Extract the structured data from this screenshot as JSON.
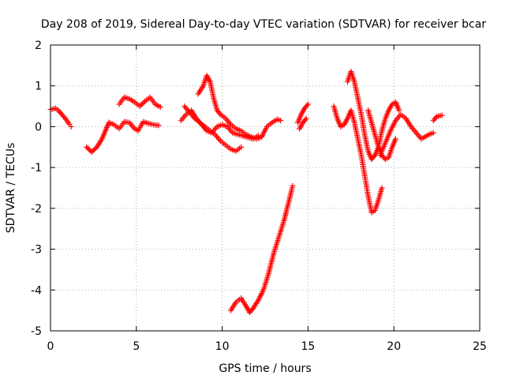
{
  "chart_data": {
    "type": "scatter",
    "title": "Day 208 of 2019, Sidereal Day-to-day VTEC variation (SDTVAR) for receiver bcar",
    "xlabel": "GPS time / hours",
    "ylabel": "SDTVAR / TECUs",
    "xlim": [
      0,
      25
    ],
    "ylim": [
      -5,
      2
    ],
    "xticks": [
      "0",
      "5",
      "10",
      "15",
      "20",
      "25"
    ],
    "yticks": [
      "-5",
      "-4",
      "-3",
      "-2",
      "-1",
      "0",
      "1",
      "2"
    ],
    "grid": true,
    "marker": "+",
    "color": "#ff0000",
    "series": [
      {
        "name": "seg01",
        "x": [
          0.0,
          0.3,
          0.5,
          0.7,
          0.9,
          1.1,
          1.2
        ],
        "y": [
          0.42,
          0.45,
          0.38,
          0.28,
          0.18,
          0.06,
          0.0
        ]
      },
      {
        "name": "seg02",
        "x": [
          2.1,
          2.4,
          2.7,
          3.0,
          3.2,
          3.4
        ],
        "y": [
          -0.5,
          -0.62,
          -0.5,
          -0.3,
          -0.1,
          0.1
        ]
      },
      {
        "name": "seg03",
        "x": [
          3.4,
          3.7,
          4.0,
          4.3,
          4.6,
          4.9,
          5.1,
          5.4,
          5.7,
          6.0,
          6.3
        ],
        "y": [
          0.1,
          0.05,
          -0.05,
          0.12,
          0.1,
          -0.05,
          -0.1,
          0.12,
          0.08,
          0.05,
          0.03
        ]
      },
      {
        "name": "seg04",
        "x": [
          4.0,
          4.3,
          4.6,
          4.9,
          5.2,
          5.5,
          5.8,
          6.1,
          6.4
        ],
        "y": [
          0.55,
          0.72,
          0.68,
          0.6,
          0.5,
          0.62,
          0.72,
          0.55,
          0.48
        ]
      },
      {
        "name": "seg05",
        "x": [
          7.6,
          7.9,
          8.2,
          8.5,
          8.8,
          9.1,
          9.4,
          9.7,
          10.0,
          10.3,
          10.6,
          11.0,
          11.4,
          11.8,
          12.1
        ],
        "y": [
          0.15,
          0.3,
          0.4,
          0.2,
          0.05,
          -0.1,
          -0.15,
          0.0,
          0.05,
          0.0,
          -0.15,
          -0.2,
          -0.25,
          -0.3,
          -0.22
        ]
      },
      {
        "name": "seg06",
        "x": [
          7.8,
          8.1,
          8.4,
          8.7,
          9.0,
          9.3,
          9.6,
          9.9,
          10.2,
          10.5,
          10.8,
          11.1
        ],
        "y": [
          0.5,
          0.35,
          0.2,
          0.1,
          0.0,
          -0.1,
          -0.2,
          -0.35,
          -0.45,
          -0.55,
          -0.6,
          -0.5
        ]
      },
      {
        "name": "seg07",
        "x": [
          8.6,
          8.9,
          9.1,
          9.3,
          9.5,
          9.7,
          9.9
        ],
        "y": [
          0.8,
          1.0,
          1.25,
          1.1,
          0.7,
          0.4,
          0.3
        ]
      },
      {
        "name": "seg08",
        "x": [
          9.9,
          10.2,
          10.5,
          10.8,
          11.1,
          11.4,
          11.7,
          12.0,
          12.3
        ],
        "y": [
          0.3,
          0.2,
          0.05,
          -0.05,
          -0.1,
          -0.2,
          -0.25,
          -0.3,
          -0.25
        ]
      },
      {
        "name": "seg09",
        "x": [
          12.3,
          12.6,
          12.9,
          13.2,
          13.4
        ],
        "y": [
          -0.25,
          0.0,
          0.1,
          0.18,
          0.15
        ]
      },
      {
        "name": "seg10",
        "x": [
          10.5,
          10.8,
          11.1,
          11.4,
          11.6,
          11.8,
          12.1,
          12.4,
          12.7,
          13.0,
          13.3,
          13.6,
          13.9,
          14.1
        ],
        "y": [
          -4.5,
          -4.3,
          -4.2,
          -4.4,
          -4.55,
          -4.45,
          -4.25,
          -4.0,
          -3.6,
          -3.1,
          -2.7,
          -2.3,
          -1.8,
          -1.45
        ]
      },
      {
        "name": "seg11",
        "x": [
          14.4,
          14.6,
          14.8,
          15.0
        ],
        "y": [
          0.1,
          0.3,
          0.45,
          0.55
        ]
      },
      {
        "name": "seg12",
        "x": [
          14.5,
          14.7,
          14.9
        ],
        "y": [
          -0.05,
          0.1,
          0.2
        ]
      },
      {
        "name": "seg13",
        "x": [
          16.5,
          16.7,
          16.9,
          17.1,
          17.3,
          17.5,
          17.7,
          17.9,
          18.1,
          18.3,
          18.5,
          18.7,
          18.9,
          19.1,
          19.3
        ],
        "y": [
          0.5,
          0.2,
          0.0,
          0.05,
          0.2,
          0.4,
          0.1,
          -0.3,
          -0.7,
          -1.2,
          -1.7,
          -2.1,
          -2.05,
          -1.8,
          -1.5
        ]
      },
      {
        "name": "seg14",
        "x": [
          17.3,
          17.5,
          17.7,
          17.9,
          18.1,
          18.3,
          18.5,
          18.7,
          18.9,
          19.1,
          19.3,
          19.5,
          19.7,
          19.9,
          20.1,
          20.3
        ],
        "y": [
          1.1,
          1.35,
          1.1,
          0.7,
          0.3,
          -0.2,
          -0.6,
          -0.8,
          -0.7,
          -0.5,
          -0.1,
          0.2,
          0.4,
          0.55,
          0.6,
          0.4
        ]
      },
      {
        "name": "seg15",
        "x": [
          18.5,
          18.7,
          18.9,
          19.1,
          19.3,
          19.5,
          19.7,
          19.9,
          20.1
        ],
        "y": [
          0.4,
          0.1,
          -0.2,
          -0.5,
          -0.7,
          -0.8,
          -0.75,
          -0.5,
          -0.3
        ]
      },
      {
        "name": "seg16",
        "x": [
          19.2,
          19.5,
          19.8,
          20.1,
          20.4,
          20.7,
          21.0,
          21.3,
          21.6,
          22.0,
          22.3
        ],
        "y": [
          -0.7,
          -0.4,
          -0.1,
          0.15,
          0.3,
          0.2,
          0.0,
          -0.15,
          -0.3,
          -0.2,
          -0.15
        ]
      },
      {
        "name": "seg17",
        "x": [
          22.3,
          22.5,
          22.8
        ],
        "y": [
          0.15,
          0.25,
          0.28
        ]
      }
    ]
  }
}
